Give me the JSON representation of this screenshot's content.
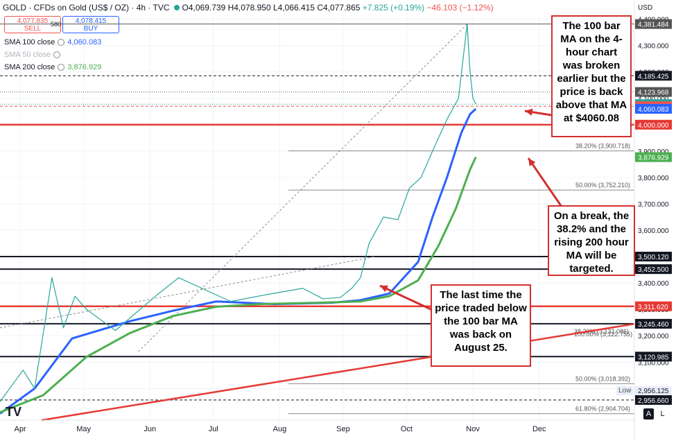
{
  "header": {
    "symbol": "GOLD · CFDs on Gold (US$ / OZ) · 4h · TVC",
    "open": "O4,069.739",
    "high": "H4,078.950",
    "low": "L4,066.415",
    "close": "C4,077.865",
    "change": "+7.825 (+0.19%)",
    "change_neg": "−46.103 (−1.12%)",
    "sell_price": "4,077.835",
    "sell_label": "SELL",
    "buy_price": "4,078.415",
    "buy_label": "BUY",
    "spread": "580",
    "currency": "USD"
  },
  "indicators": [
    {
      "label": "SMA 100 close",
      "value": "4,060.083",
      "color": "#2962ff"
    },
    {
      "label": "SMA 50 close",
      "value": "",
      "color": "#b2b5be"
    },
    {
      "label": "SMA 200 close",
      "value": "3,876.929",
      "color": "#4caf50"
    }
  ],
  "annotations": {
    "top": "The 100 bar MA on the 4-hour chart was broken earlier but the price is back above that MA at $4060.08",
    "middle": "On a break, the 38.2% and the rising 200 hour MA will be targeted.",
    "bottom": "The last time the price traded below the 100 bar MA was back on August 25."
  },
  "controls": {
    "auto": "A",
    "log": "L",
    "low_tag": "Low",
    "logo": "TV"
  },
  "chart_data": {
    "type": "line",
    "x_labels": [
      "Apr",
      "May",
      "Jun",
      "Jul",
      "Aug",
      "Sep",
      "Oct",
      "Nov",
      "Dec"
    ],
    "y_ticks": [
      3000,
      3100,
      3200,
      3300,
      3400,
      3500,
      3600,
      3700,
      3800,
      3900,
      4000,
      4100,
      4200,
      4300,
      4400
    ],
    "y_tick_labels": [
      "3,000.000",
      "3,100.000",
      "3,200.000",
      "3,300.000",
      "3,400.000",
      "3,500.000",
      "3,600.000",
      "3,700.000",
      "3,800.000",
      "3,900.000",
      "4,000.000",
      "4,100.000",
      "4,200.000",
      "4,300.000",
      "4,400.000"
    ],
    "ylim": [
      2880,
      4420
    ],
    "series": [
      {
        "name": "SMA 100 close",
        "color": "#2962ff",
        "x": [
          0,
          12,
          25,
          45,
          60,
          75,
          95,
          115,
          125,
          135,
          145,
          150,
          155,
          160,
          163,
          165
        ],
        "y": [
          2905,
          3000,
          3190,
          3255,
          3295,
          3330,
          3320,
          3325,
          3335,
          3360,
          3480,
          3650,
          3800,
          3970,
          4040,
          4060
        ]
      },
      {
        "name": "SMA 200 close",
        "color": "#4caf50",
        "x": [
          0,
          15,
          30,
          45,
          60,
          75,
          90,
          110,
          125,
          135,
          145,
          152,
          158,
          163,
          165
        ],
        "y": [
          2910,
          2975,
          3120,
          3210,
          3275,
          3310,
          3320,
          3325,
          3330,
          3350,
          3410,
          3540,
          3680,
          3830,
          3877
        ]
      },
      {
        "name": "Price",
        "color": "#26a69a",
        "x": [
          0,
          8,
          12,
          18,
          22,
          26,
          30,
          40,
          55,
          62,
          70,
          80,
          92,
          105,
          112,
          118,
          122,
          125,
          128,
          133,
          138,
          142,
          146,
          150,
          155,
          159,
          162,
          163,
          164,
          165
        ],
        "y": [
          2950,
          3070,
          3000,
          3420,
          3230,
          3350,
          3300,
          3220,
          3360,
          3420,
          3380,
          3330,
          3355,
          3380,
          3340,
          3345,
          3380,
          3420,
          3550,
          3650,
          3640,
          3760,
          3800,
          3900,
          4020,
          4100,
          4381,
          4200,
          4100,
          4078
        ]
      }
    ],
    "horizontal_levels": [
      {
        "value": 4381.484,
        "label": "4,381.484",
        "color": "#555555",
        "style": "solid"
      },
      {
        "value": 4185.425,
        "label": "4,185.425",
        "color": "#131722",
        "style": "dashed"
      },
      {
        "value": 4123.968,
        "label": "4,123.968",
        "color": "#555555",
        "style": "dotted"
      },
      {
        "value": 4077.865,
        "label": "4,077.865",
        "color": "#26a69a",
        "style": "dotted"
      },
      {
        "value": 4069.932,
        "label": "4,069.932",
        "color": "#ef5350",
        "style": "dashed"
      },
      {
        "value": 4060.083,
        "label": "4,060.083",
        "color": "#2962ff",
        "style": "none"
      },
      {
        "value": 4000.0,
        "label": "4,000.000",
        "color": "#e53935",
        "style": "solid"
      },
      {
        "value": 3900.718,
        "label": "38.20% (3,900.718)",
        "color": "#555555",
        "style": "fib"
      },
      {
        "value": 3876.929,
        "label": "3,876.929",
        "color": "#4caf50",
        "style": "none"
      },
      {
        "value": 3752.21,
        "label": "50.00% (3,752.210)",
        "color": "#555555",
        "style": "fib"
      },
      {
        "value": 3500.12,
        "label": "3,500.120",
        "color": "#131722",
        "style": "thick"
      },
      {
        "value": 3452.5,
        "label": "3,452.500",
        "color": "#131722",
        "style": "thick"
      },
      {
        "value": 3311.62,
        "label": "3,311.620",
        "color": "#e53935",
        "style": "thick"
      },
      {
        "value": 3245.46,
        "label": "3,245.460",
        "color": "#131722",
        "style": "thick"
      },
      {
        "value": 3120.985,
        "label": "3,120.985",
        "color": "#131722",
        "style": "thick"
      },
      {
        "value": 3018.392,
        "label": "50.00% (3,018.392)",
        "color": "#555555",
        "style": "fib"
      },
      {
        "value": 2956.66,
        "label": "2,956.660",
        "color": "#131722",
        "style": "dashed"
      },
      {
        "value": 2904.704,
        "label": "61.80% (2,904.704)",
        "color": "#555555",
        "style": "fib"
      }
    ],
    "fib_labels_extra": [
      "38.20% (3,132.086)",
      "100.00% (3,122.755)"
    ],
    "low_value": "2,956.125"
  }
}
